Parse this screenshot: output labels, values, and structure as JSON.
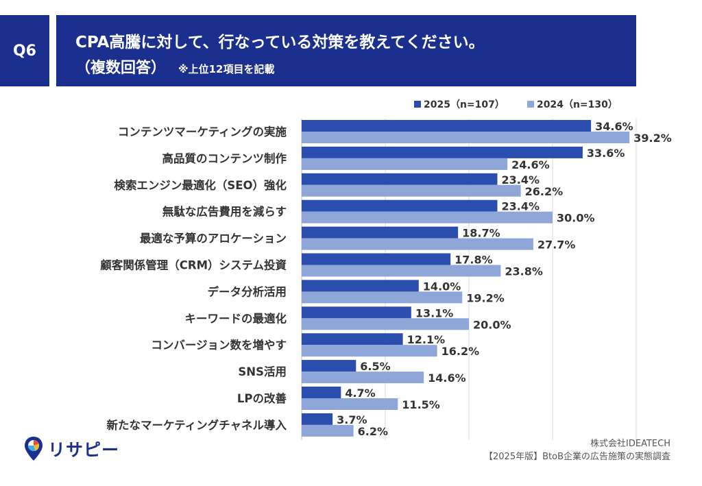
{
  "header": {
    "badge": "Q6",
    "title": "CPA高騰に対して、行なっている対策を教えてください。",
    "subtitle": "（複数回答）",
    "note": "※上位12項目を記載"
  },
  "colors": {
    "header_bg": "#1b2f8f",
    "series_2025": "#2a4dae",
    "series_2024": "#8fa6d9"
  },
  "chart_data": {
    "type": "bar",
    "orientation": "horizontal",
    "categories": [
      "コンテンツマーケティングの実施",
      "高品質のコンテンツ制作",
      "検索エンジン最適化（SEO）強化",
      "無駄な広告費用を減らす",
      "最適な予算のアロケーション",
      "顧客関係管理（CRM）システム投資",
      "データ分析活用",
      "キーワードの最適化",
      "コンバージョン数を増やす",
      "SNS活用",
      "LPの改善",
      "新たなマーケティングチャネル導入"
    ],
    "series": [
      {
        "name": "2025（n=107）",
        "values": [
          34.6,
          33.6,
          23.4,
          23.4,
          18.7,
          17.8,
          14.0,
          13.1,
          12.1,
          6.5,
          4.7,
          3.7
        ]
      },
      {
        "name": "2024（n=130）",
        "values": [
          39.2,
          24.6,
          26.2,
          30.0,
          27.7,
          23.8,
          19.2,
          20.0,
          16.2,
          14.6,
          11.5,
          6.2
        ]
      }
    ],
    "value_suffix": "%",
    "xlim": [
      0,
      60
    ],
    "grid": true,
    "legend_position": "top-right"
  },
  "footer": {
    "company": "株式会社IDEATECH",
    "source": "【2025年版】BtoB企業の広告施策の実態調査"
  },
  "logo": {
    "text": "リサピー"
  }
}
